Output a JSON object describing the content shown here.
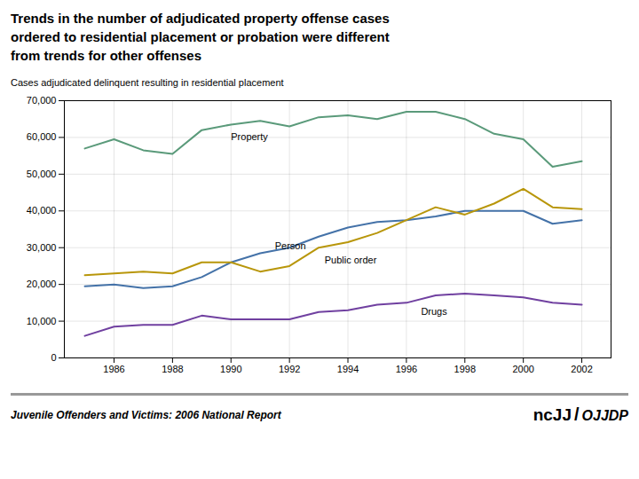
{
  "chart_data": {
    "type": "line",
    "title": "Trends in the number of adjudicated property offense cases\nordered to residential placement or probation were different\nfrom trends for other offenses",
    "subtitle": "Cases adjudicated delinquent resulting in residential placement",
    "caption": "Juvenile Offenders and Victims: 2006 National Report",
    "logo": [
      "ncJJ",
      "/",
      "OJJDP"
    ],
    "x": [
      1985,
      1986,
      1987,
      1988,
      1989,
      1990,
      1991,
      1992,
      1993,
      1994,
      1995,
      1996,
      1997,
      1998,
      1999,
      2000,
      2001,
      2002
    ],
    "series": [
      {
        "name": "Property",
        "color": "#5a9a7a",
        "values": [
          57000,
          59500,
          56500,
          55500,
          62000,
          63500,
          64500,
          63000,
          65500,
          66000,
          65000,
          67000,
          67000,
          65000,
          61000,
          59500,
          52000,
          53500
        ]
      },
      {
        "name": "Person",
        "color": "#4472a8",
        "values": [
          19500,
          20000,
          19000,
          19500,
          22000,
          26000,
          28500,
          30000,
          33000,
          35500,
          37000,
          37500,
          38500,
          40000,
          40000,
          40000,
          36500,
          37500
        ]
      },
      {
        "name": "Public order",
        "color": "#b8960a",
        "values": [
          22500,
          23000,
          23500,
          23000,
          26000,
          26000,
          23500,
          25000,
          30000,
          31500,
          34000,
          37500,
          41000,
          39000,
          42000,
          46000,
          41000,
          40500
        ]
      },
      {
        "name": "Drugs",
        "color": "#7040a0",
        "values": [
          6000,
          8500,
          9000,
          9000,
          11500,
          10500,
          10500,
          10500,
          12500,
          13000,
          14500,
          15000,
          17000,
          17500,
          17000,
          16500,
          15000,
          14500
        ]
      }
    ],
    "annotations": [
      {
        "text": "Property",
        "x": 1990.0,
        "y": 60000
      },
      {
        "text": "Person",
        "x": 1991.5,
        "y": 30500
      },
      {
        "text": "Public order",
        "x": 1993.2,
        "y": 26500
      },
      {
        "text": "Drugs",
        "x": 1996.5,
        "y": 12500
      }
    ],
    "xlim": [
      1984.3,
      2003.0
    ],
    "xticks": [
      1986,
      1988,
      1990,
      1992,
      1994,
      1996,
      1998,
      2000,
      2002
    ],
    "ylim": [
      0,
      70000
    ],
    "yticks": [
      0,
      {
        "value": 10000,
        "label": "10,000"
      },
      {
        "value": 20000,
        "label": "20,000"
      },
      {
        "value": 30000,
        "label": "30,000"
      },
      {
        "value": 40000,
        "label": "40,000"
      },
      {
        "value": 50000,
        "label": "50,000"
      },
      {
        "value": 60000,
        "label": "60,000"
      },
      {
        "value": 70000,
        "label": "70,000"
      }
    ],
    "grid": true
  }
}
